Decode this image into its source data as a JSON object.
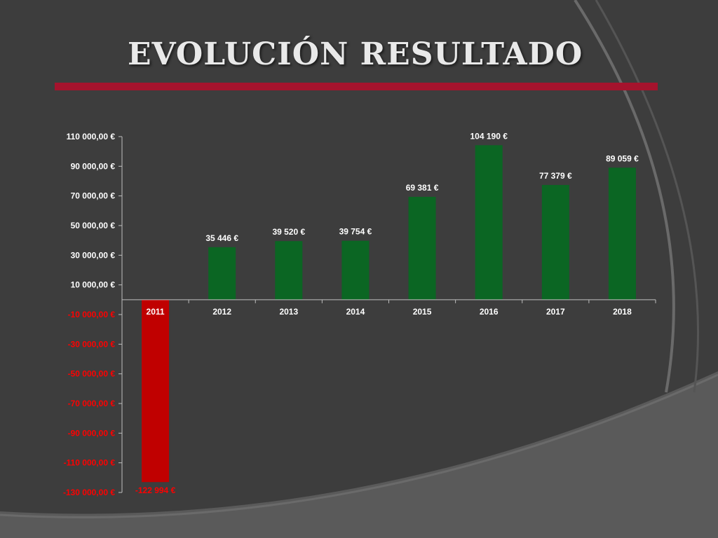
{
  "slide": {
    "title": "EVOLUCIÓN RESULTADO",
    "accent_color": "#a5132d",
    "background_color": "#3d3d3d"
  },
  "chart_data": {
    "type": "bar",
    "title": "",
    "xlabel": "",
    "ylabel": "",
    "categories": [
      "2011",
      "2012",
      "2013",
      "2014",
      "2015",
      "2016",
      "2017",
      "2018"
    ],
    "series": [
      {
        "values": [
          -122994,
          35446,
          39520,
          39754,
          69381,
          104190,
          77379,
          89059
        ],
        "data_labels": [
          "-122 994 €",
          "35 446 €",
          "39 520 €",
          "39 754 €",
          "69 381 €",
          "104 190 €",
          "77 379 €",
          "89 059 €"
        ]
      }
    ],
    "y_ticks": [
      110000,
      90000,
      70000,
      50000,
      30000,
      10000,
      -10000,
      -30000,
      -50000,
      -70000,
      -90000,
      -110000,
      -130000
    ],
    "y_tick_labels": [
      "110 000,00 €",
      "90 000,00 €",
      "70 000,00 €",
      "50 000,00 €",
      "30 000,00 €",
      "10 000,00 €",
      "-10 000,00 €",
      "-30 000,00 €",
      "-50 000,00 €",
      "-70 000,00 €",
      "-90 000,00 €",
      "-110 000,00 €",
      "-130 000,00 €"
    ],
    "ylim": [
      -130000,
      110000
    ],
    "grid": false,
    "legend": "none",
    "positive_color": "#0b6623",
    "negative_color": "#c00000",
    "negative_label_color": "#ff0000"
  }
}
